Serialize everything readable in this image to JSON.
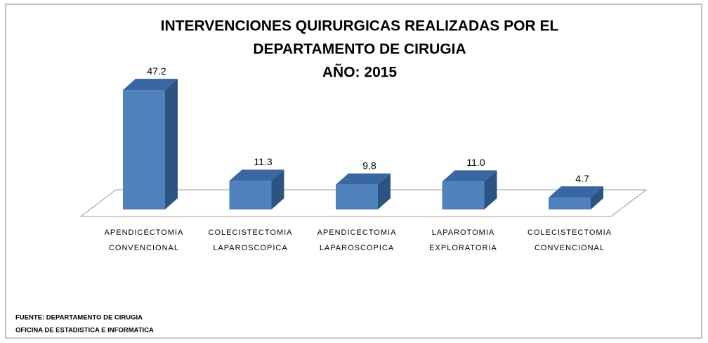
{
  "chart_data": {
    "type": "bar3d",
    "title": [
      "INTERVENCIONES QUIRURGICAS REALIZADAS POR EL",
      "DEPARTAMENTO DE CIRUGIA",
      "AÑO: 2015"
    ],
    "categories": [
      "APENDICECTOMIA CONVENCIONAL",
      "COLECISTECTOMIA LAPAROSCOPICA",
      "APENDICECTOMIA LAPAROSCOPICA",
      "LAPAROTOMIA EXPLORATORIA",
      "COLECISTECTOMIA CONVENCIONAL"
    ],
    "values": [
      47.2,
      11.3,
      9.8,
      11.0,
      4.7
    ],
    "value_labels": [
      "47.2",
      "11.3",
      "9.8",
      "11.0",
      "4.7"
    ],
    "color": "#4f81bd",
    "source": [
      "FUENTE: DEPARTAMENTO DE CIRUGIA",
      "OFICINA DE ESTADISTICA E INFORMATICA"
    ]
  }
}
